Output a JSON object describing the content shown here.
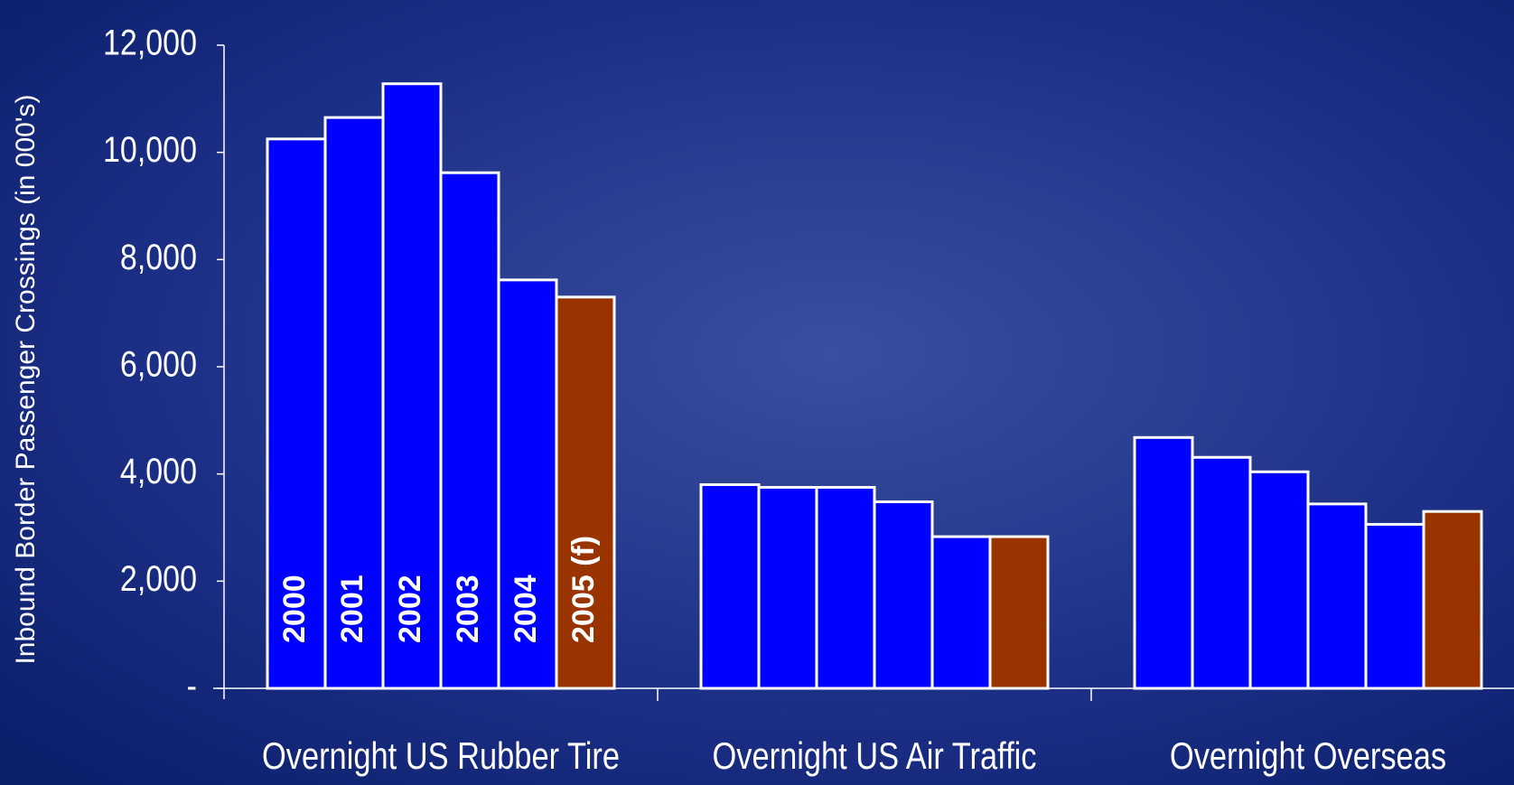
{
  "chart_data": {
    "type": "bar",
    "y_label": "Inbound Border Passenger Crossings (in 000's)",
    "categories": [
      "Overnight US Rubber Tire",
      "Overnight US Air Traffic",
      "Overnight Overseas"
    ],
    "series": [
      {
        "name": "2000",
        "color": "#0000ff",
        "values": [
          10250,
          3800,
          4680
        ]
      },
      {
        "name": "2001",
        "color": "#0000ff",
        "values": [
          10650,
          3750,
          4310
        ]
      },
      {
        "name": "2002",
        "color": "#0000ff",
        "values": [
          11280,
          3750,
          4040
        ]
      },
      {
        "name": "2003",
        "color": "#0000ff",
        "values": [
          9620,
          3480,
          3440
        ]
      },
      {
        "name": "2004",
        "color": "#0000ff",
        "values": [
          7620,
          2830,
          3060
        ]
      },
      {
        "name": "2005 (f)",
        "color": "#993300",
        "values": [
          7300,
          2830,
          3300
        ]
      }
    ],
    "ylim": [
      0,
      12000
    ],
    "yticks": [
      {
        "value": 0,
        "label": "-"
      },
      {
        "value": 2000,
        "label": "2,000"
      },
      {
        "value": 4000,
        "label": "4,000"
      },
      {
        "value": 6000,
        "label": "6,000"
      },
      {
        "value": 8000,
        "label": "8,000"
      },
      {
        "value": 10000,
        "label": "10,000"
      },
      {
        "value": 12000,
        "label": "12,000"
      }
    ]
  }
}
